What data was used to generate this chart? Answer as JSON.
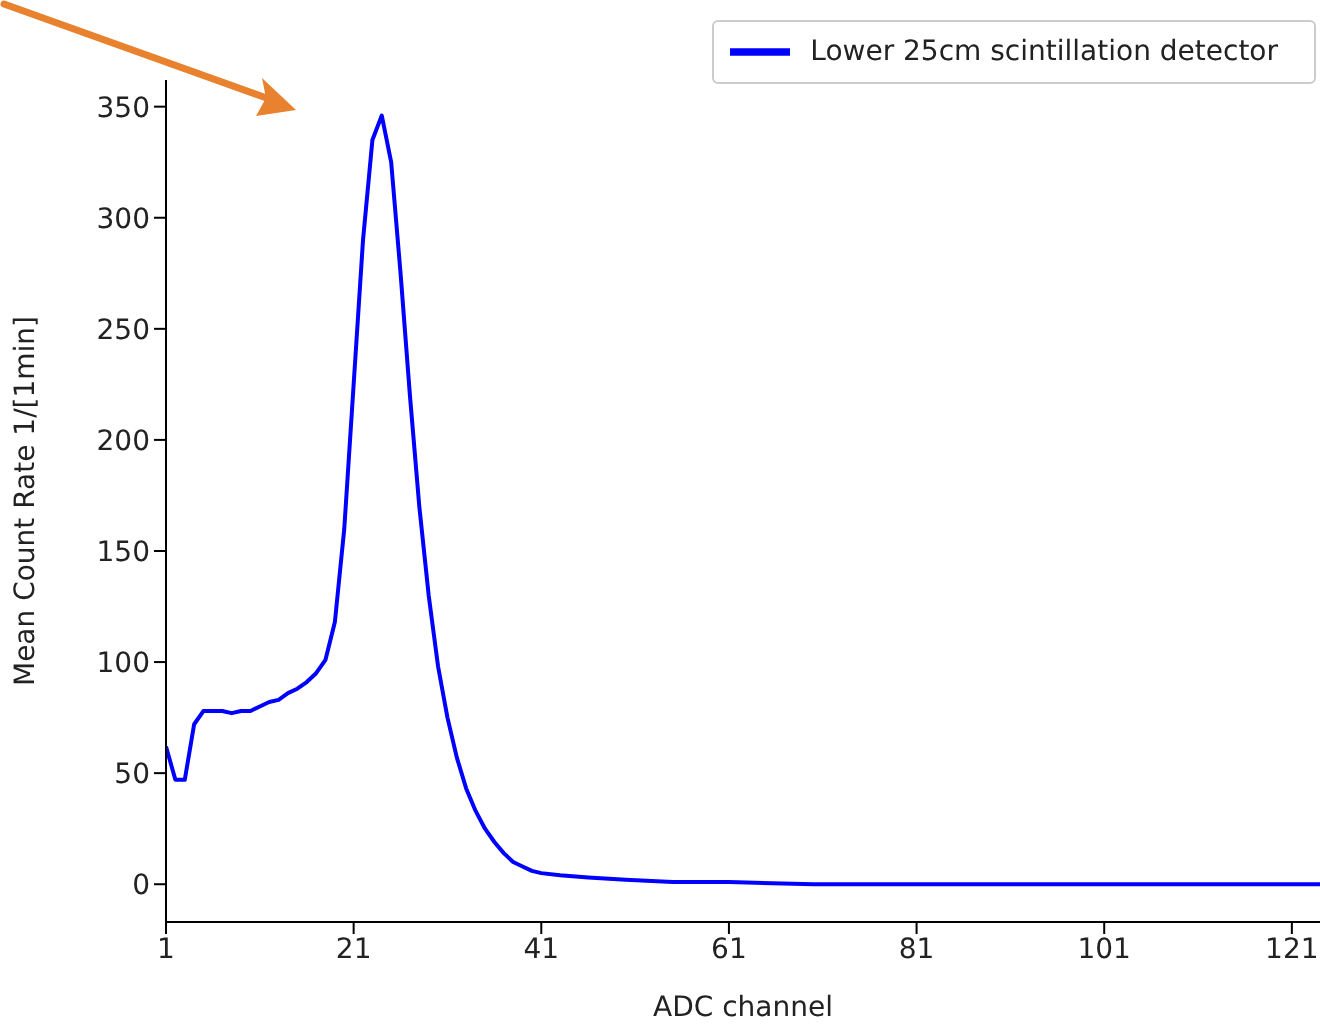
{
  "chart_data": {
    "type": "line",
    "xlabel": "ADC channel",
    "ylabel": "Mean Count Rate 1/[1min]",
    "x": [
      1,
      2,
      3,
      4,
      5,
      6,
      7,
      8,
      9,
      10,
      11,
      12,
      13,
      14,
      15,
      16,
      17,
      18,
      19,
      20,
      21,
      22,
      23,
      24,
      25,
      26,
      27,
      28,
      29,
      30,
      31,
      32,
      33,
      34,
      35,
      36,
      37,
      38,
      39,
      40,
      41,
      43,
      46,
      50,
      55,
      61,
      70,
      81,
      101,
      124
    ],
    "series": [
      {
        "name": "Lower 25cm scintillation detector",
        "color": "#0000ff",
        "values": [
          62,
          47,
          47,
          72,
          78,
          78,
          78,
          77,
          78,
          78,
          80,
          82,
          83,
          86,
          88,
          91,
          95,
          101,
          118,
          160,
          225,
          290,
          335,
          346,
          325,
          275,
          220,
          170,
          130,
          98,
          75,
          57,
          43,
          33,
          25,
          19,
          14,
          10,
          8,
          6,
          5,
          4,
          3,
          2,
          1,
          1,
          0,
          0,
          0,
          0
        ]
      }
    ],
    "xlim": [
      1,
      124
    ],
    "xticks": [
      1,
      21,
      41,
      61,
      81,
      101,
      121
    ],
    "ylim": [
      -17,
      362
    ],
    "yticks": [
      0,
      50,
      100,
      150,
      200,
      250,
      300,
      350
    ],
    "legend": "top right",
    "marker": "none",
    "line_style": "solid"
  }
}
